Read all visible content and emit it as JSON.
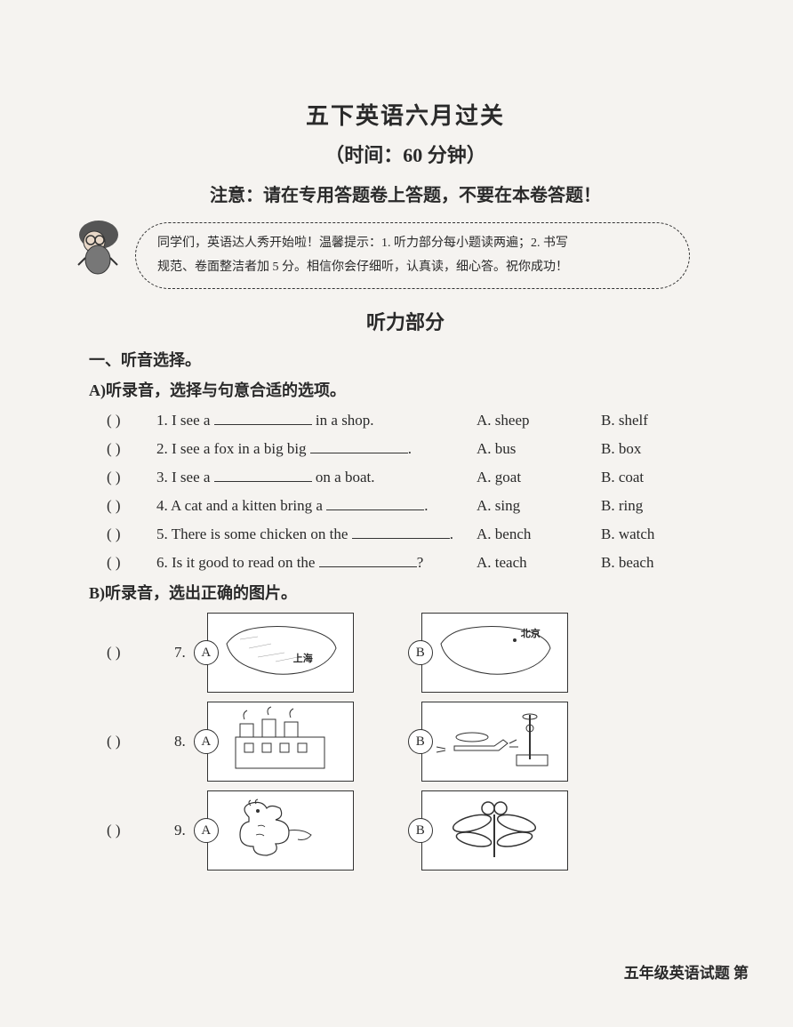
{
  "header": {
    "title": "五下英语六月过关",
    "subtitle": "（时间：60 分钟）",
    "notice": "注意：请在专用答题卷上答题，不要在本卷答题！"
  },
  "tip": {
    "line1": "同学们，英语达人秀开始啦！温馨提示：1. 听力部分每小题读两遍；2. 书写",
    "line2": "规范、卷面整洁者加 5 分。相信你会仔细听，认真读，细心答。祝你成功！"
  },
  "listening_title": "听力部分",
  "section1_heading": "一、听音选择。",
  "partA_heading": "A)听录音，选择与句意合适的选项。",
  "partA_questions": [
    {
      "num": "1",
      "pre": "I see a ",
      "post": " in a shop.",
      "A": "A. sheep",
      "B": "B. shelf"
    },
    {
      "num": "2",
      "pre": "I see a fox in a big big ",
      "post": ".",
      "A": "A. bus",
      "B": "B. box"
    },
    {
      "num": "3",
      "pre": "I see a ",
      "post": " on a boat.",
      "A": "A. goat",
      "B": "B. coat"
    },
    {
      "num": "4",
      "pre": "A cat and a kitten bring a ",
      "post": ".",
      "A": "A. sing",
      "B": "B. ring"
    },
    {
      "num": "5",
      "pre": "There is some chicken on the ",
      "post": ".",
      "A": "A. bench",
      "B": "B. watch"
    },
    {
      "num": "6",
      "pre": "Is it good to read on the ",
      "post": "?",
      "A": "A. teach",
      "B": "B. beach"
    }
  ],
  "partB_heading": "B)听录音，选出正确的图片。",
  "partB_questions": [
    {
      "num": "7",
      "labelA": "上海",
      "labelB": "北京"
    },
    {
      "num": "8"
    },
    {
      "num": "9"
    }
  ],
  "footer": "五年级英语试题  第",
  "letters": {
    "A": "A",
    "B": "B"
  },
  "paren": "(        )"
}
